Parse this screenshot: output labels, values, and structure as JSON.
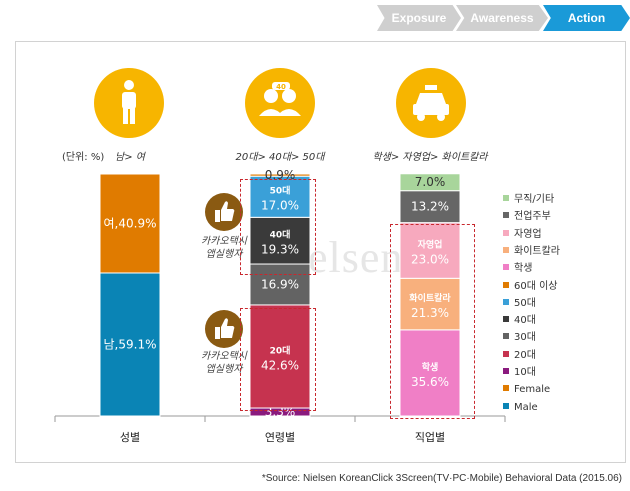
{
  "nav": {
    "steps": [
      {
        "label": "Exposure",
        "active": false
      },
      {
        "label": "Awareness",
        "active": false
      },
      {
        "label": "Action",
        "active": true
      }
    ]
  },
  "colors": {
    "step_gray": "#cfcfcf",
    "step_active": "#1a9ad8",
    "icon_circle": "#f7b500",
    "badge": "#8a5a12",
    "dashed_box": "#c8282e"
  },
  "icons": [
    "person-icon",
    "people-icon",
    "taxi-icon",
    "thumbs-up-icon"
  ],
  "unit_label": "(단위: %)",
  "watermark": "Nielsen",
  "badges": [
    {
      "text": "카카오택시\n앱실행자"
    },
    {
      "text": "카카오택시\n앱실행자"
    }
  ],
  "chart_data": {
    "type": "bar",
    "stacked": true,
    "ylim": [
      0,
      100
    ],
    "categories": [
      "성별",
      "연령별",
      "직업별"
    ],
    "category_sublabels": [
      "남> 여",
      "20대> 40대> 50대",
      "학생> 자영업> 화이트칼라"
    ],
    "series": [
      {
        "name": "Male",
        "color": "#0a84b5",
        "values": [
          59.1,
          null,
          null
        ],
        "labels": [
          "남,59.1%",
          "",
          ""
        ]
      },
      {
        "name": "Female",
        "color": "#e07b00",
        "values": [
          40.9,
          null,
          null
        ],
        "labels": [
          "여,40.9%",
          "",
          ""
        ]
      },
      {
        "name": "10대",
        "color": "#8a1a7e",
        "values": [
          null,
          3.3,
          null
        ],
        "labels": [
          "",
          "3.3%",
          ""
        ]
      },
      {
        "name": "20대",
        "color": "#c6334f",
        "values": [
          null,
          42.6,
          null
        ],
        "labels": [
          "",
          "20대\n42.6%",
          ""
        ]
      },
      {
        "name": "30대",
        "color": "#636363",
        "values": [
          null,
          16.9,
          null
        ],
        "labels": [
          "",
          "16.9%",
          ""
        ]
      },
      {
        "name": "40대",
        "color": "#3a3a3a",
        "values": [
          null,
          19.3,
          null
        ],
        "labels": [
          "",
          "40대\n19.3%",
          ""
        ]
      },
      {
        "name": "50대",
        "color": "#3aa0d8",
        "values": [
          null,
          17.0,
          null
        ],
        "labels": [
          "",
          "50대\n17.0%",
          ""
        ]
      },
      {
        "name": "60대 이상",
        "color": "#e07b00",
        "values": [
          null,
          0.9,
          null
        ],
        "labels": [
          "",
          "0.9%",
          ""
        ]
      },
      {
        "name": "학생",
        "color": "#f07fc6",
        "values": [
          null,
          null,
          35.6
        ],
        "labels": [
          "",
          "",
          "학생\n35.6%"
        ]
      },
      {
        "name": "화이트칼라",
        "color": "#f8b07d",
        "values": [
          null,
          null,
          21.3
        ],
        "labels": [
          "",
          "",
          "화이트칼라\n21.3%"
        ]
      },
      {
        "name": "자영업",
        "color": "#f7a9be",
        "values": [
          null,
          null,
          23.0
        ],
        "labels": [
          "",
          "",
          "자영업\n23.0%"
        ]
      },
      {
        "name": "전업주부",
        "color": "#666666",
        "values": [
          null,
          null,
          13.2
        ],
        "labels": [
          "",
          "",
          "13.2%"
        ]
      },
      {
        "name": "무직/기타",
        "color": "#a8d59b",
        "values": [
          null,
          null,
          7.0
        ],
        "labels": [
          "",
          "",
          "7.0%"
        ]
      }
    ],
    "legend": {
      "placement": "right",
      "items": [
        "무직/기타",
        "전업주부",
        "자영업",
        "화이트칼라",
        "학생",
        "60대 이상",
        "50대",
        "40대",
        "30대",
        "20대",
        "10대",
        "Female",
        "Male"
      ]
    }
  },
  "source": "*Source: Nielsen KoreanClick 3Screen(TV·PC·Mobile) Behavioral Data (2015.06)"
}
